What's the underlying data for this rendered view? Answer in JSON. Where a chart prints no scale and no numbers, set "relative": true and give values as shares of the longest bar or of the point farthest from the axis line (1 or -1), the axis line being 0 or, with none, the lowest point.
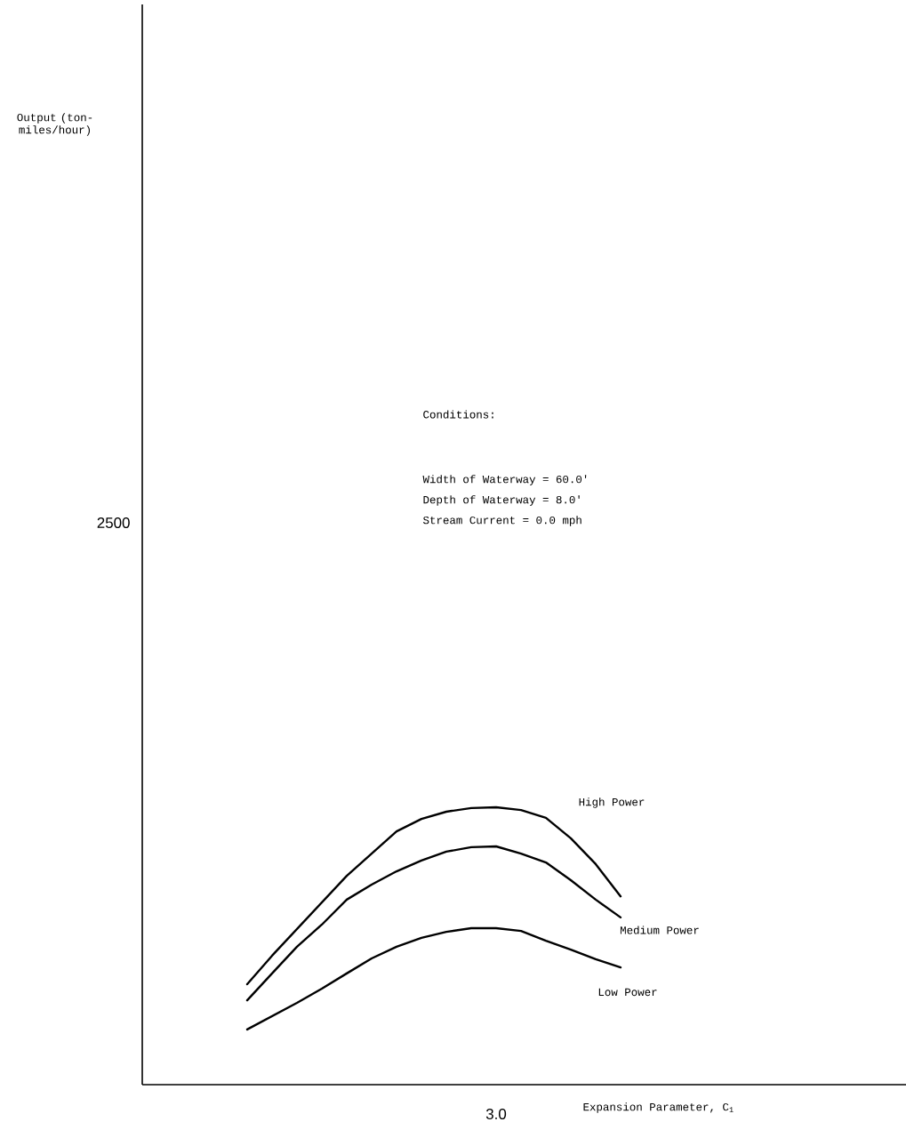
{
  "chart_data": {
    "type": "line",
    "relative": true,
    "xlabel": "Expansion Parameter, C$_{1}$",
    "annotations": [
      "Output (ton-miles/hour)",
      "Conditions:",
      "Width of Waterway = 60.0'",
      "Depth of Waterway = 8.0'",
      "Stream Current = 0.0 mph",
      "2500",
      "3.0"
    ],
    "categories": [
      null,
      null,
      null,
      null,
      null,
      null,
      null,
      null,
      null,
      null,
      null,
      null,
      null,
      null,
      null,
      null
    ],
    "series": [
      {
        "name": "High Power",
        "color": "#000000",
        "values": [
          0.362,
          0.465,
          0.561,
          0.657,
          0.753,
          0.833,
          0.913,
          0.958,
          0.984,
          0.997,
          1.0,
          0.99,
          0.962,
          0.888,
          0.795,
          0.679
        ]
      },
      {
        "name": "Medium Power",
        "color": "#000000",
        "values": [
          0.304,
          0.401,
          0.497,
          0.577,
          0.667,
          0.721,
          0.769,
          0.808,
          0.84,
          0.856,
          0.859,
          0.833,
          0.801,
          0.737,
          0.667,
          0.603
        ]
      },
      {
        "name": "Low Power",
        "color": "#000000",
        "values": [
          0.199,
          0.247,
          0.295,
          0.346,
          0.401,
          0.455,
          0.497,
          0.529,
          0.551,
          0.564,
          0.564,
          0.554,
          0.519,
          0.487,
          0.452,
          0.423
        ]
      }
    ]
  }
}
